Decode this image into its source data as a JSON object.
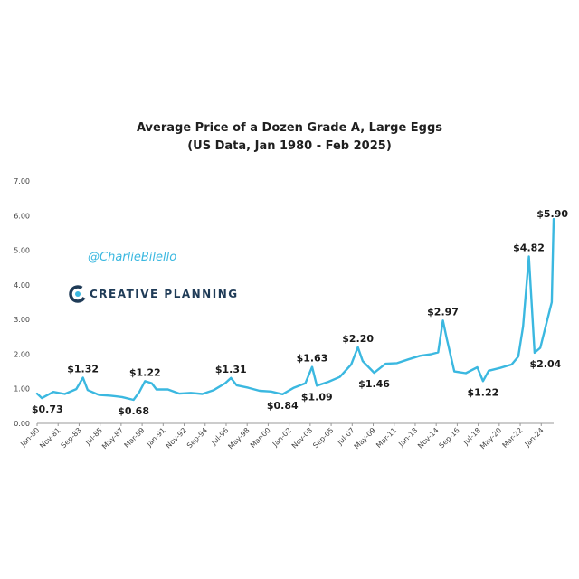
{
  "colors": {
    "line": "#3bb8e0",
    "brand_navy": "#1f3b57",
    "brand_teal": "#3bb8e0",
    "text": "#1a1a1a",
    "axis": "#999999"
  },
  "branding": {
    "handle": "@CharlieBilello",
    "company": "CREATIVE PLANNING",
    "logo_icon": "creative-planning-logo-icon"
  },
  "chart_data": {
    "type": "line",
    "title": "Average Price of a Dozen Grade A, Large Eggs",
    "subtitle": "(US Data, Jan 1980 - Feb 2025)",
    "xlabel": "",
    "ylabel": "",
    "ylim": [
      0,
      7
    ],
    "grid": false,
    "legend": "none",
    "y_ticks": [
      "0.00",
      "1.00",
      "2.00",
      "3.00",
      "4.00",
      "5.00",
      "6.00",
      "7.00"
    ],
    "x_ticks": [
      "Jan-80",
      "Nov-81",
      "Sep-83",
      "Jul-85",
      "May-87",
      "Mar-89",
      "Jan-91",
      "Nov-92",
      "Sep-94",
      "Jul-96",
      "May-98",
      "Mar-00",
      "Jan-02",
      "Nov-03",
      "Sep-05",
      "Jul-07",
      "May-09",
      "Mar-11",
      "Jan-13",
      "Nov-14",
      "Sep-16",
      "Jul-18",
      "May-20",
      "Mar-22",
      "Jan-24"
    ],
    "series": [
      {
        "x": [
          "1980-01",
          "1980-06",
          "1981-06",
          "1982-06",
          "1983-06",
          "1984-01",
          "1984-06",
          "1985-06",
          "1986-06",
          "1987-06",
          "1988-06",
          "1988-12",
          "1989-06",
          "1990-01",
          "1990-06",
          "1991-06",
          "1992-06",
          "1993-06",
          "1994-06",
          "1995-06",
          "1996-06",
          "1996-12",
          "1997-06",
          "1998-06",
          "1999-06",
          "2000-06",
          "2001-06",
          "2002-06",
          "2003-06",
          "2004-01",
          "2004-06",
          "2005-06",
          "2006-06",
          "2007-06",
          "2008-01",
          "2008-06",
          "2009-06",
          "2010-06",
          "2011-06",
          "2012-06",
          "2013-06",
          "2014-06",
          "2015-01",
          "2015-06",
          "2015-10",
          "2016-06",
          "2017-06",
          "2018-06",
          "2018-12",
          "2019-06",
          "2020-06",
          "2021-06",
          "2022-01",
          "2022-06",
          "2022-12",
          "2023-06",
          "2023-12",
          "2024-06",
          "2024-12",
          "2025-02"
        ],
        "values": [
          0.86,
          0.73,
          0.91,
          0.85,
          0.99,
          1.32,
          0.96,
          0.82,
          0.8,
          0.76,
          0.68,
          0.9,
          1.22,
          1.16,
          0.98,
          0.98,
          0.86,
          0.88,
          0.85,
          0.96,
          1.16,
          1.31,
          1.1,
          1.03,
          0.94,
          0.92,
          0.84,
          1.03,
          1.16,
          1.63,
          1.09,
          1.2,
          1.34,
          1.7,
          2.2,
          1.8,
          1.46,
          1.72,
          1.74,
          1.85,
          1.95,
          2.0,
          2.05,
          2.97,
          2.45,
          1.5,
          1.45,
          1.62,
          1.22,
          1.52,
          1.6,
          1.7,
          1.93,
          2.8,
          4.82,
          2.04,
          2.18,
          2.85,
          3.5,
          5.9
        ]
      }
    ],
    "annotations": [
      {
        "label": "$0.73",
        "x": "1980-06",
        "value": 0.73
      },
      {
        "label": "$1.32",
        "x": "1984-01",
        "value": 1.32
      },
      {
        "label": "$0.68",
        "x": "1988-06",
        "value": 0.68
      },
      {
        "label": "$1.22",
        "x": "1989-06",
        "value": 1.22
      },
      {
        "label": "$1.31",
        "x": "1996-12",
        "value": 1.31
      },
      {
        "label": "$0.84",
        "x": "2001-06",
        "value": 0.84
      },
      {
        "label": "$1.63",
        "x": "2004-01",
        "value": 1.63
      },
      {
        "label": "$1.09",
        "x": "2004-06",
        "value": 1.09
      },
      {
        "label": "$2.20",
        "x": "2008-01",
        "value": 2.2
      },
      {
        "label": "$1.46",
        "x": "2009-06",
        "value": 1.46
      },
      {
        "label": "$2.97",
        "x": "2015-06",
        "value": 2.97
      },
      {
        "label": "$1.22",
        "x": "2018-12",
        "value": 1.22
      },
      {
        "label": "$4.82",
        "x": "2022-12",
        "value": 4.82
      },
      {
        "label": "$2.04",
        "x": "2023-06",
        "value": 2.04
      },
      {
        "label": "$5.90",
        "x": "2025-02",
        "value": 5.9
      }
    ]
  }
}
